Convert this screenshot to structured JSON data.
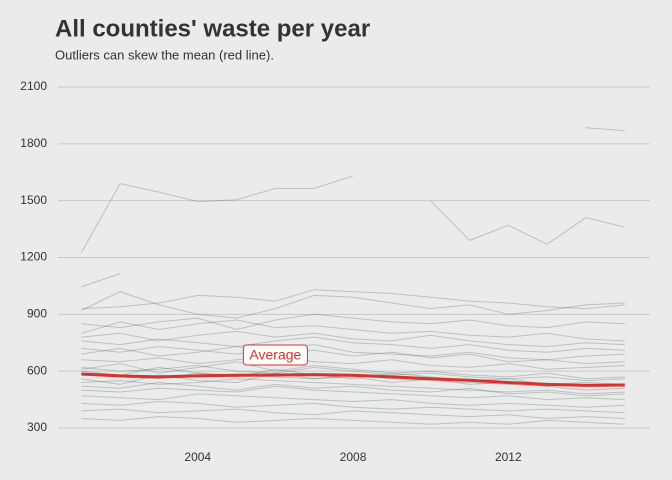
{
  "chart_data": {
    "type": "line",
    "title": "All counties' waste per year",
    "subtitle": "Outliers can skew the mean (red line).",
    "x": [
      2001,
      2002,
      2003,
      2004,
      2005,
      2006,
      2007,
      2008,
      2009,
      2010,
      2011,
      2012,
      2013,
      2014,
      2015
    ],
    "xlim": [
      2000.4,
      2015.65
    ],
    "xticks": [
      2004,
      2008,
      2012
    ],
    "ylim": [
      300,
      2100
    ],
    "yticks": [
      300,
      600,
      900,
      1200,
      1500,
      1800,
      2100
    ],
    "grid": true,
    "color": "#1f4d40",
    "series": [
      {
        "values": [
          1225,
          1590,
          1545,
          1495,
          1505,
          1565,
          1565,
          1630,
          null,
          1500,
          1290,
          1370,
          1270,
          1410,
          1360
        ]
      },
      {
        "values": [
          null,
          null,
          null,
          null,
          null,
          null,
          null,
          null,
          null,
          null,
          null,
          null,
          null,
          1885,
          1870
        ]
      },
      {
        "values": [
          1045,
          1115,
          null,
          null,
          null,
          null,
          null,
          null,
          null,
          null,
          null,
          null,
          null,
          null,
          null
        ]
      },
      {
        "values": [
          930,
          940,
          960,
          1000,
          990,
          970,
          1030,
          1020,
          1010,
          990,
          970,
          960,
          940,
          930,
          950
        ]
      },
      {
        "values": [
          920,
          1020,
          950,
          900,
          880,
          930,
          1000,
          990,
          960,
          930,
          950,
          900,
          920,
          950,
          960
        ]
      },
      {
        "values": [
          850,
          830,
          860,
          880,
          820,
          870,
          900,
          880,
          860,
          850,
          870,
          840,
          830,
          860,
          850
        ]
      },
      {
        "values": [
          800,
          860,
          820,
          850,
          870,
          830,
          840,
          820,
          800,
          810,
          790,
          780,
          800,
          770,
          760
        ]
      },
      {
        "values": [
          780,
          800,
          760,
          790,
          810,
          780,
          800,
          770,
          760,
          790,
          760,
          740,
          730,
          750,
          740
        ]
      },
      {
        "values": [
          760,
          740,
          770,
          750,
          730,
          760,
          780,
          750,
          740,
          720,
          740,
          710,
          700,
          720,
          710
        ]
      },
      {
        "values": [
          720,
          700,
          730,
          710,
          690,
          720,
          740,
          700,
          690,
          680,
          700,
          670,
          660,
          680,
          690
        ]
      },
      {
        "values": [
          690,
          720,
          680,
          700,
          730,
          690,
          710,
          680,
          700,
          670,
          690,
          650,
          660,
          640,
          650
        ]
      },
      {
        "values": [
          660,
          650,
          670,
          640,
          660,
          680,
          650,
          640,
          660,
          630,
          620,
          640,
          610,
          620,
          630
        ]
      },
      {
        "values": [
          620,
          600,
          610,
          630,
          600,
          590,
          620,
          600,
          580,
          590,
          570,
          560,
          570,
          550,
          560
        ]
      },
      {
        "values": [
          610,
          640,
          590,
          620,
          650,
          600,
          630,
          610,
          590,
          600,
          580,
          570,
          590,
          560,
          570
        ]
      },
      {
        "values": [
          600,
          580,
          620,
          590,
          570,
          610,
          580,
          560,
          590,
          570,
          550,
          560,
          530,
          540,
          530
        ]
      },
      {
        "values": [
          580,
          570,
          560,
          590,
          580,
          570,
          560,
          580,
          560,
          550,
          540,
          530,
          520,
          530,
          520
        ]
      },
      {
        "values": [
          560,
          530,
          580,
          550,
          540,
          590,
          560,
          570,
          540,
          560,
          530,
          540,
          520,
          500,
          510
        ]
      },
      {
        "values": [
          540,
          550,
          530,
          540,
          560,
          550,
          540,
          530,
          520,
          510,
          500,
          490,
          500,
          480,
          490
        ]
      },
      {
        "values": [
          520,
          510,
          540,
          520,
          500,
          530,
          510,
          520,
          500,
          490,
          510,
          480,
          490,
          470,
          480
        ]
      },
      {
        "values": [
          500,
          490,
          510,
          500,
          490,
          520,
          500,
          490,
          480,
          470,
          460,
          470,
          450,
          460,
          450
        ]
      },
      {
        "values": [
          470,
          460,
          450,
          480,
          470,
          460,
          450,
          440,
          450,
          430,
          420,
          430,
          420,
          410,
          420
        ]
      },
      {
        "values": [
          430,
          420,
          440,
          430,
          410,
          420,
          430,
          410,
          400,
          410,
          400,
          390,
          400,
          390,
          380
        ]
      },
      {
        "values": [
          390,
          400,
          380,
          390,
          400,
          380,
          370,
          390,
          380,
          370,
          360,
          370,
          350,
          360,
          350
        ]
      },
      {
        "values": [
          350,
          340,
          360,
          350,
          330,
          340,
          350,
          340,
          330,
          320,
          330,
          320,
          340,
          330,
          320
        ]
      },
      {
        "name": "Average",
        "color": "#d7322e",
        "values": [
          585,
          575,
          570,
          575,
          578,
          580,
          582,
          578,
          570,
          560,
          552,
          540,
          530,
          525,
          527
        ]
      }
    ]
  }
}
